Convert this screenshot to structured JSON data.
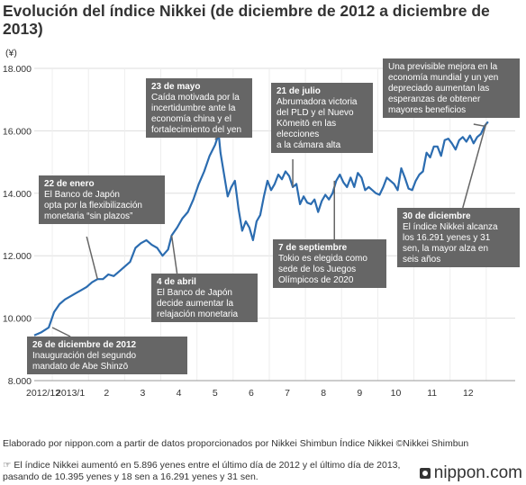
{
  "title": "Evolución del índice Nikkei (de diciembre de 2012 a diciembre de 2013)",
  "source": "Elaborado por nippon.com a partir de datos proporcionados por Nikkei Shimbun Índice Nikkei ©Nikkei Shimbun",
  "note": "El índice Nikkei aumentó en 5.896 yenes entre el último día de 2012 y el último día de 2013, pasando de 10.395 yenes y 18 sen a 16.291 yenes y 31 sen.",
  "brand": "nippon.com",
  "chart_data": {
    "type": "line",
    "yunit": "(¥)",
    "ylim": [
      8000,
      18000
    ],
    "yticks": [
      8000,
      10000,
      12000,
      14000,
      16000,
      18000
    ],
    "ytick_labels": [
      "8.000",
      "10.000",
      "12.000",
      "14.000",
      "16.000",
      "18.000"
    ],
    "xlim": [
      0,
      13.3
    ],
    "xticks": [
      0.25,
      1,
      2,
      3,
      4,
      5,
      6,
      7,
      8,
      9,
      10,
      11,
      12
    ],
    "xtick_labels": [
      "2012/12",
      "2013/1",
      "2",
      "3",
      "4",
      "5",
      "6",
      "7",
      "8",
      "9",
      "10",
      "11",
      "12"
    ],
    "colors": {
      "line": "#2b6cb0",
      "box": "#666666",
      "box_text": "#ffffff",
      "grid": "#dddddd"
    },
    "series": [
      {
        "x": [
          0,
          0.2,
          0.4,
          0.55,
          0.7,
          0.85,
          1.0,
          1.15,
          1.3,
          1.45,
          1.6,
          1.75,
          1.9,
          2.05,
          2.2,
          2.35,
          2.5,
          2.65,
          2.8,
          2.95,
          3.1,
          3.25,
          3.4,
          3.55,
          3.7,
          3.8,
          3.95,
          4.1,
          4.25,
          4.4,
          4.55,
          4.7,
          4.85,
          5.0,
          5.1,
          5.15,
          5.25,
          5.35,
          5.45,
          5.55,
          5.65,
          5.75,
          5.85,
          5.95,
          6.05,
          6.15,
          6.25,
          6.35,
          6.45,
          6.55,
          6.65,
          6.75,
          6.85,
          6.95,
          7.05,
          7.15,
          7.25,
          7.35,
          7.45,
          7.55,
          7.65,
          7.75,
          7.85,
          7.95,
          8.05,
          8.15,
          8.25,
          8.35,
          8.45,
          8.55,
          8.65,
          8.75,
          8.85,
          8.95,
          9.05,
          9.15,
          9.25,
          9.35,
          9.45,
          9.55,
          9.65,
          9.75,
          9.85,
          9.95,
          10.05,
          10.15,
          10.25,
          10.35,
          10.45,
          10.55,
          10.65,
          10.75,
          10.85,
          10.95,
          11.05,
          11.15,
          11.25,
          11.35,
          11.45,
          11.55,
          11.65,
          11.75,
          11.85,
          11.95,
          12.05,
          12.15,
          12.25,
          12.35,
          12.45,
          12.55
        ],
        "y": [
          9450,
          9550,
          9700,
          10200,
          10450,
          10600,
          10700,
          10800,
          10900,
          11000,
          11150,
          11250,
          11250,
          11400,
          11350,
          11500,
          11650,
          11800,
          12250,
          12400,
          12500,
          12350,
          12250,
          12000,
          12200,
          12650,
          12900,
          13200,
          13400,
          13800,
          14300,
          14700,
          15200,
          15550,
          15900,
          15300,
          14600,
          13900,
          14200,
          14400,
          13500,
          12800,
          13100,
          12900,
          12500,
          13100,
          13300,
          13900,
          14400,
          14100,
          14300,
          14600,
          14450,
          14700,
          14550,
          14200,
          14300,
          13650,
          13900,
          13700,
          13650,
          13800,
          13400,
          13750,
          13950,
          13800,
          14000,
          14400,
          14600,
          14350,
          14200,
          14500,
          14200,
          14650,
          14500,
          14100,
          14200,
          14100,
          14000,
          13950,
          14200,
          14500,
          14400,
          14300,
          14100,
          14800,
          14500,
          14150,
          14100,
          14400,
          14600,
          14700,
          15300,
          15150,
          15500,
          15500,
          15200,
          15700,
          15750,
          15600,
          15400,
          15700,
          15800,
          15650,
          15850,
          15600,
          15800,
          15900,
          16150,
          16291
        ]
      }
    ],
    "annotations": [
      {
        "date": "23 de mayo",
        "text": [
          "Caída motivada por la",
          "incertidumbre ante la",
          "economía china y el",
          "fortalecimiento del yen"
        ]
      },
      {
        "date": "21 de julio",
        "text": [
          "Abrumadora victoria",
          "del PLD y el Nuevo",
          "Kōmeitō en las",
          "elecciones",
          "a la cámara alta"
        ]
      },
      {
        "date": "",
        "text": [
          "Una previsible mejora en la",
          "economía mundial y un yen",
          "depreciado aumentan las",
          "esperanzas de obtener",
          "mayores beneficios"
        ]
      },
      {
        "date": "22 de enero",
        "text": [
          "El Banco de Japón",
          "opta por la flexibilización",
          "monetaria “sin plazos”"
        ]
      },
      {
        "date": "30 de diciembre",
        "text": [
          "El índice Nikkei alcanza",
          "los 16.291 yenes y 31",
          "sen, la mayor alza en",
          "seis años"
        ]
      },
      {
        "date": "7 de septiembre",
        "text": [
          "Tokio es elegida como",
          "sede de los Juegos",
          "Olímpicos de 2020"
        ]
      },
      {
        "date": "4 de abril",
        "text": [
          "El Banco de Japón",
          "decide aumentar la",
          "relajación monetaria"
        ]
      },
      {
        "date": "26 de diciembre de 2012",
        "text": [
          "Inauguración del segundo",
          "mandato de Abe Shinzō"
        ]
      }
    ]
  }
}
